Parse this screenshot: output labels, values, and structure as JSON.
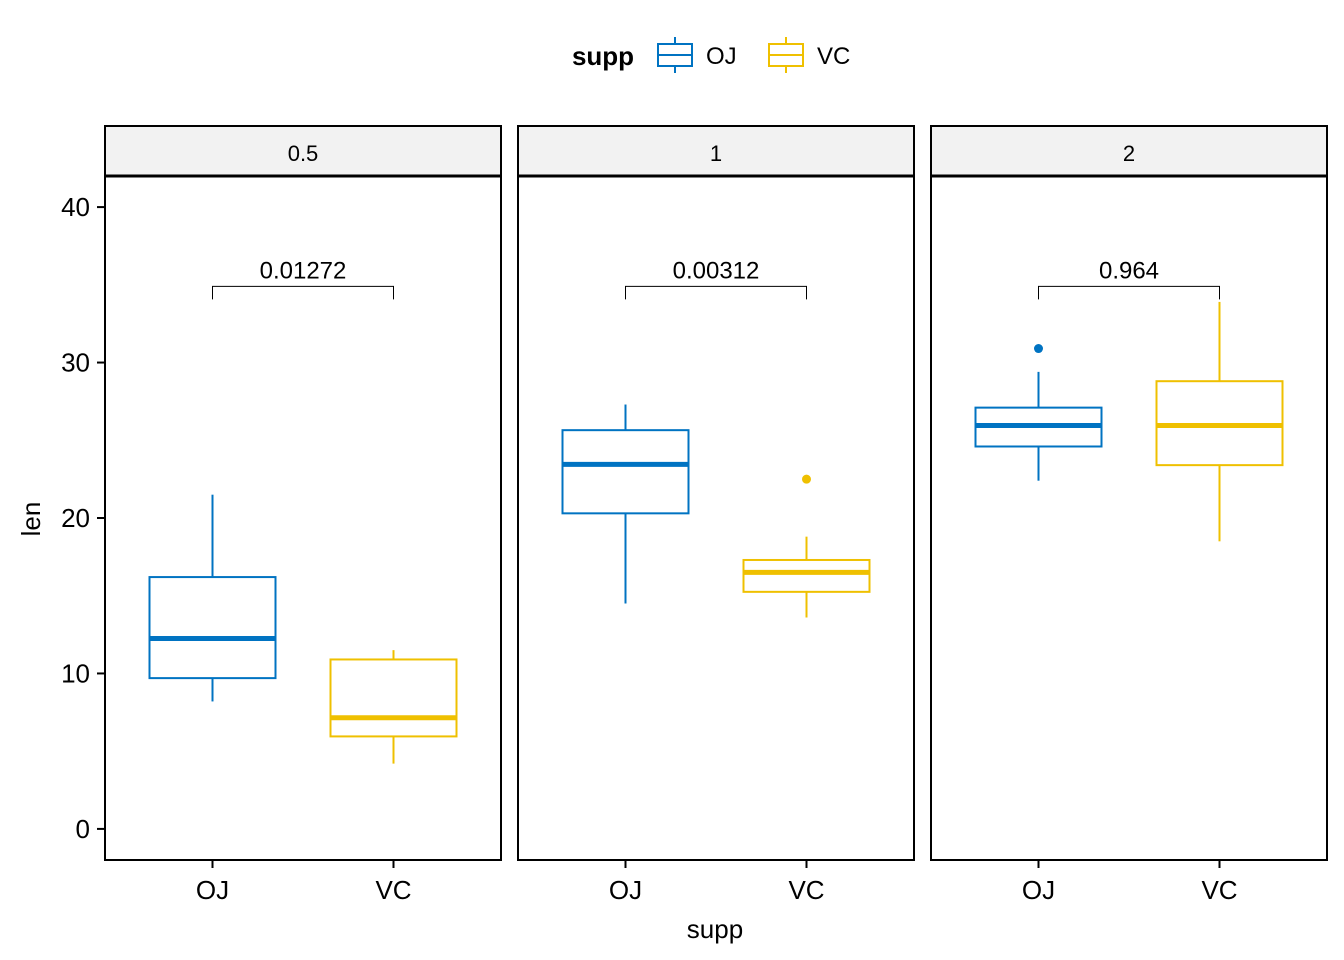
{
  "chart_data": {
    "type": "box",
    "facet_var": "dose",
    "xlabel": "supp",
    "ylabel": "len",
    "ylim": [
      -2,
      42
    ],
    "yticks": [
      0,
      10,
      20,
      30,
      40
    ],
    "categories": [
      "OJ",
      "VC"
    ],
    "legend": {
      "title": "supp",
      "position": "top",
      "entries": [
        {
          "name": "OJ",
          "color": "#0073C2"
        },
        {
          "name": "VC",
          "color": "#EFC000"
        }
      ]
    },
    "grid": false,
    "panels": [
      {
        "label": "0.5",
        "pvalue": "0.01272",
        "bracket_y": 34.9,
        "boxes": [
          {
            "group": "OJ",
            "whisker_low": 8.2,
            "q1": 9.7,
            "median": 12.25,
            "q3": 16.2,
            "whisker_high": 21.5,
            "outliers": []
          },
          {
            "group": "VC",
            "whisker_low": 4.2,
            "q1": 5.95,
            "median": 7.15,
            "q3": 10.9,
            "whisker_high": 11.5,
            "outliers": []
          }
        ]
      },
      {
        "label": "1",
        "pvalue": "0.00312",
        "bracket_y": 34.9,
        "boxes": [
          {
            "group": "OJ",
            "whisker_low": 14.5,
            "q1": 20.3,
            "median": 23.45,
            "q3": 25.65,
            "whisker_high": 27.3,
            "outliers": []
          },
          {
            "group": "VC",
            "whisker_low": 13.6,
            "q1": 15.25,
            "median": 16.5,
            "q3": 17.3,
            "whisker_high": 18.8,
            "outliers": [
              22.5
            ]
          }
        ]
      },
      {
        "label": "2",
        "pvalue": "0.964",
        "bracket_y": 34.9,
        "boxes": [
          {
            "group": "OJ",
            "whisker_low": 22.4,
            "q1": 24.6,
            "median": 25.95,
            "q3": 27.1,
            "whisker_high": 29.4,
            "outliers": [
              30.9
            ]
          },
          {
            "group": "VC",
            "whisker_low": 18.5,
            "q1": 23.4,
            "median": 25.95,
            "q3": 28.8,
            "whisker_high": 33.9,
            "outliers": []
          }
        ]
      }
    ]
  }
}
